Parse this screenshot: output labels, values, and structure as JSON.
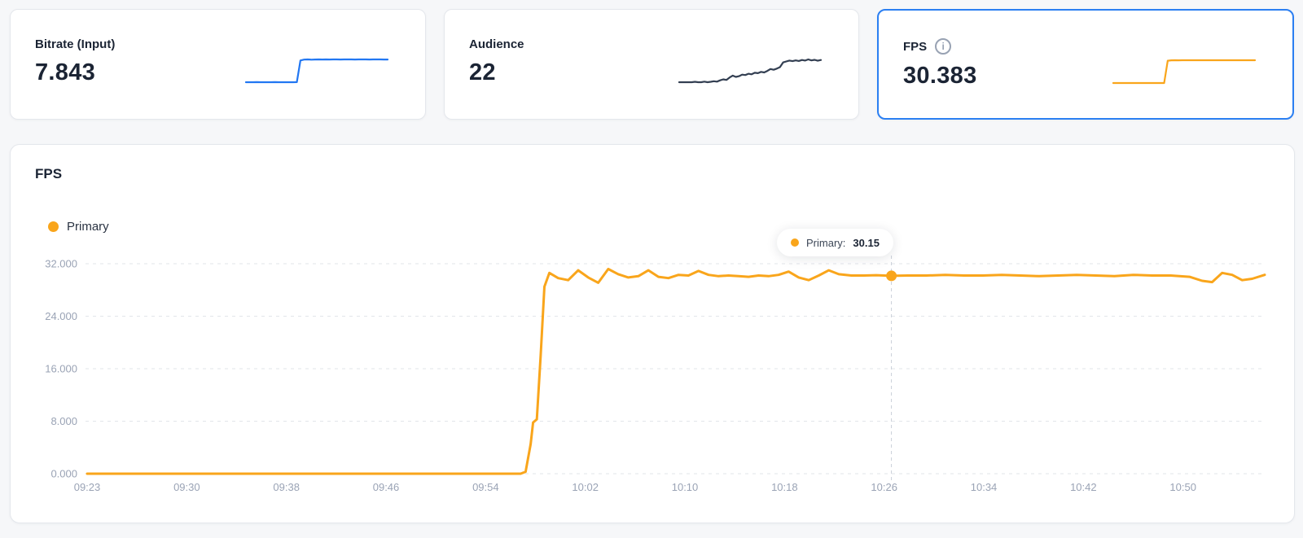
{
  "colors": {
    "accent_blue": "#2B7FF2",
    "spark_blue": "#2277F2",
    "spark_navy": "#333F52",
    "primary_orange": "#F9A51B",
    "text_dark": "#1B2434",
    "tick_gray": "#9AA3B5",
    "grid_gray": "#E2E5EA"
  },
  "icons": {
    "info_glyph": "i"
  },
  "stat_cards": [
    {
      "title": "Bitrate (Input)",
      "value": "7.843",
      "selected": false,
      "spark_color": "#2277F2",
      "spark": [
        2.05,
        2.05,
        2.04,
        2.06,
        2.05,
        2.05,
        2.04,
        2.05,
        2.06,
        2.05,
        2.05,
        2.04,
        2.05,
        2.05,
        2.06,
        7.6,
        7.82,
        7.85,
        7.8,
        7.84,
        7.86,
        7.83,
        7.85,
        7.84,
        7.86,
        7.85,
        7.84,
        7.85,
        7.86,
        7.85,
        7.84,
        7.85,
        7.85,
        7.86,
        7.84,
        7.85,
        7.86,
        7.85,
        7.84,
        7.84
      ]
    },
    {
      "title": "Audience",
      "value": "22",
      "selected": false,
      "spark_color": "#333F52",
      "spark": [
        8,
        8,
        8,
        8,
        8,
        8.2,
        8,
        8,
        8.3,
        8,
        8.2,
        8.5,
        8.3,
        9,
        9.5,
        9.2,
        10.5,
        11.5,
        10.8,
        11.2,
        12,
        11.8,
        12.5,
        12.2,
        13,
        12.8,
        13.5,
        13.2,
        14,
        15,
        14.6,
        15.2,
        16,
        18.5,
        19,
        19.5,
        19.2,
        19.6,
        19.3,
        19.8,
        19.5,
        20.1,
        19.6,
        19.9,
        19.4,
        19.8
      ]
    },
    {
      "title": "FPS",
      "value": "30.383",
      "selected": true,
      "spark_color": "#F9A51B",
      "spark": [
        0.2,
        0.2,
        0.2,
        0.2,
        0.2,
        0.2,
        0.2,
        0.2,
        0.2,
        0.2,
        0.2,
        0.2,
        0.2,
        0.2,
        0.2,
        29.8,
        30.3,
        30.4,
        30.3,
        30.4,
        30.35,
        30.4,
        30.38,
        30.4,
        30.36,
        30.4,
        30.38,
        30.4,
        30.4,
        30.38,
        30.4,
        30.36,
        30.4,
        30.38,
        30.4,
        30.4,
        30.38,
        30.4,
        30.38,
        30.38
      ]
    }
  ],
  "chart": {
    "title": "FPS",
    "legend": {
      "label": "Primary"
    },
    "tooltip": {
      "label": "Primary:",
      "value": "30.15"
    }
  },
  "chart_data": {
    "type": "line",
    "title": "FPS",
    "xlabel": "",
    "ylabel": "",
    "ylim": [
      0,
      32
    ],
    "grid": "dashed-horizontal",
    "legend_position": "top-left",
    "y_ticks": [
      "0.000",
      "8.000",
      "16.000",
      "24.000",
      "32.000"
    ],
    "x_ticks": [
      "09:23",
      "09:30",
      "09:38",
      "09:46",
      "09:54",
      "10:02",
      "10:10",
      "10:18",
      "10:26",
      "10:34",
      "10:42",
      "10:50"
    ],
    "x_start": "09:23",
    "t_max": 94,
    "hover": {
      "t": 64.2,
      "value": 30.15
    },
    "series": [
      {
        "name": "Primary",
        "color": "#F9A51B",
        "points": [
          [
            0,
            0
          ],
          [
            3,
            0
          ],
          [
            6,
            0
          ],
          [
            9,
            0
          ],
          [
            12,
            0
          ],
          [
            15,
            0
          ],
          [
            18,
            0
          ],
          [
            21,
            0
          ],
          [
            24,
            0
          ],
          [
            27,
            0
          ],
          [
            30,
            0
          ],
          [
            33,
            0
          ],
          [
            34.6,
            0
          ],
          [
            35.0,
            0.3
          ],
          [
            35.4,
            4.5
          ],
          [
            35.6,
            7.8
          ],
          [
            35.9,
            8.3
          ],
          [
            36.2,
            18
          ],
          [
            36.5,
            28.5
          ],
          [
            36.9,
            30.6
          ],
          [
            37.6,
            29.8
          ],
          [
            38.4,
            29.5
          ],
          [
            39.2,
            31.0
          ],
          [
            40.0,
            29.9
          ],
          [
            40.8,
            29.1
          ],
          [
            41.6,
            31.2
          ],
          [
            42.4,
            30.4
          ],
          [
            43.2,
            29.9
          ],
          [
            44.0,
            30.1
          ],
          [
            44.8,
            31.0
          ],
          [
            45.6,
            30.0
          ],
          [
            46.4,
            29.8
          ],
          [
            47.2,
            30.3
          ],
          [
            48.0,
            30.2
          ],
          [
            48.8,
            30.9
          ],
          [
            49.6,
            30.3
          ],
          [
            50.4,
            30.1
          ],
          [
            51.2,
            30.2
          ],
          [
            52.0,
            30.1
          ],
          [
            52.8,
            30.0
          ],
          [
            53.6,
            30.2
          ],
          [
            54.4,
            30.1
          ],
          [
            55.2,
            30.3
          ],
          [
            56.0,
            30.8
          ],
          [
            56.8,
            29.9
          ],
          [
            57.6,
            29.5
          ],
          [
            58.4,
            30.2
          ],
          [
            59.2,
            31.0
          ],
          [
            60.0,
            30.4
          ],
          [
            61.0,
            30.2
          ],
          [
            62.0,
            30.2
          ],
          [
            63.0,
            30.25
          ],
          [
            64.2,
            30.15
          ],
          [
            65.5,
            30.2
          ],
          [
            67.0,
            30.2
          ],
          [
            68.5,
            30.3
          ],
          [
            70.0,
            30.2
          ],
          [
            71.5,
            30.2
          ],
          [
            73.0,
            30.3
          ],
          [
            74.5,
            30.2
          ],
          [
            76.0,
            30.1
          ],
          [
            77.5,
            30.2
          ],
          [
            79.0,
            30.3
          ],
          [
            80.5,
            30.2
          ],
          [
            82.0,
            30.1
          ],
          [
            83.5,
            30.3
          ],
          [
            85.0,
            30.2
          ],
          [
            86.5,
            30.2
          ],
          [
            88.0,
            30.0
          ],
          [
            89.0,
            29.4
          ],
          [
            89.8,
            29.2
          ],
          [
            90.6,
            30.6
          ],
          [
            91.4,
            30.3
          ],
          [
            92.2,
            29.5
          ],
          [
            93.0,
            29.7
          ],
          [
            94.0,
            30.3
          ]
        ]
      }
    ]
  }
}
